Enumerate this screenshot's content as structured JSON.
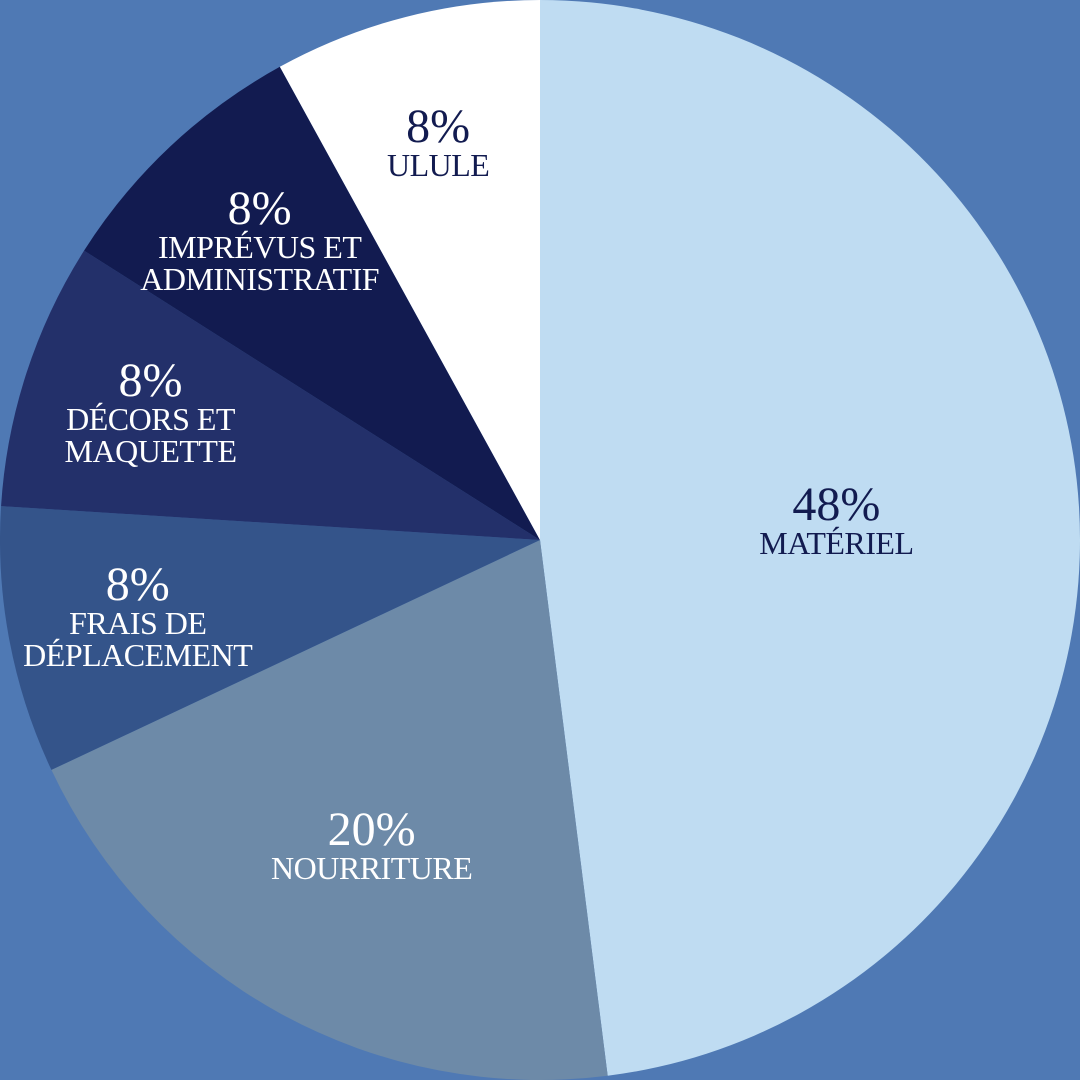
{
  "chart_data": {
    "type": "pie",
    "background": "#4f79b4",
    "start_angle": 0,
    "direction": "clockwise",
    "categories": [
      "MATÉRIEL",
      "NOURRITURE",
      "FRAIS DE\nDÉPLACEMENT",
      "DÉCORS ET\nMAQUETTE",
      "IMPRÉVUS ET\nADMINISTRATIF",
      "ULULE"
    ],
    "values": [
      48,
      20,
      8,
      8,
      8,
      8
    ],
    "value_labels": [
      "48%",
      "20%",
      "8%",
      "8%",
      "8%",
      "8%"
    ],
    "colors": [
      "#bfdcf2",
      "#6d8aa8",
      "#34548a",
      "#23306a",
      "#121b50",
      "#ffffff"
    ]
  }
}
